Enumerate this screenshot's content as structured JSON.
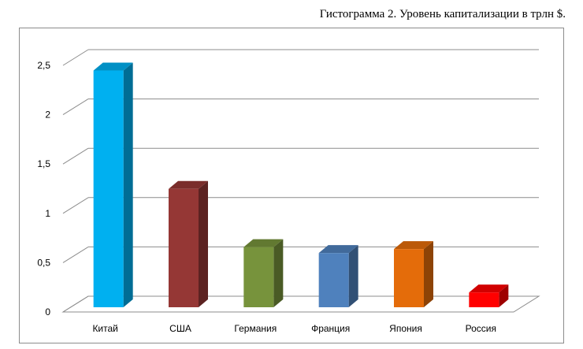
{
  "caption": "Гистограмма 2. Уровень капитализации в трлн $.",
  "chart_data": {
    "type": "bar",
    "style": "3d-column",
    "title": "Гистограмма 2. Уровень капитализации в трлн $.",
    "categories": [
      "Китай",
      "США",
      "Германия",
      "Франция",
      "Япония",
      "Россия"
    ],
    "values": [
      2.4,
      1.2,
      0.61,
      0.55,
      0.59,
      0.15
    ],
    "colors": [
      "#00b0f0",
      "#953735",
      "#77933c",
      "#4f81bd",
      "#e46c0a",
      "#ff0000"
    ],
    "ylim": [
      0,
      2.5
    ],
    "yticks": [
      0,
      0.5,
      1,
      1.5,
      2,
      2.5
    ],
    "ytick_labels": [
      "0",
      "0,5",
      "1",
      "1,5",
      "2",
      "2,5"
    ],
    "grid": true,
    "legend": "none",
    "xlabel": "",
    "ylabel": ""
  }
}
